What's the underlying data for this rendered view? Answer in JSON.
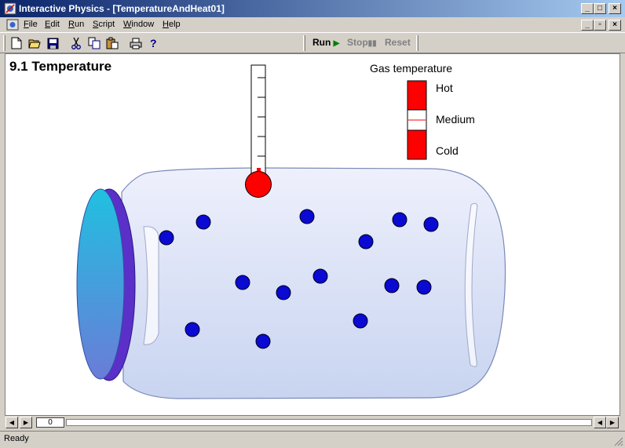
{
  "window": {
    "title": "Interactive Physics - [TemperatureAndHeat01]"
  },
  "menu": [
    {
      "label": "File",
      "key": "F"
    },
    {
      "label": "Edit",
      "key": "E"
    },
    {
      "label": "Run",
      "key": "R"
    },
    {
      "label": "Script",
      "key": "S"
    },
    {
      "label": "Window",
      "key": "W"
    },
    {
      "label": "Help",
      "key": "H"
    }
  ],
  "toolbar": {
    "icons": [
      "new-icon",
      "open-icon",
      "save-icon",
      "cut-icon",
      "copy-icon",
      "paste-icon",
      "print-icon",
      "help-icon"
    ],
    "run_label": "Run",
    "stop_label": "Stop",
    "reset_label": "Reset"
  },
  "simulation": {
    "title": "9.1 Temperature",
    "legend_title": "Gas temperature",
    "legend": {
      "hot": "Hot",
      "medium": "Medium",
      "cold": "Cold"
    },
    "colors": {
      "molecule": "#0a0ad2",
      "bulb": "#ff0000",
      "hot": "#ff0000",
      "cold": "#ff0000",
      "lid": "#30b8e0"
    }
  },
  "scroll": {
    "frame": "0"
  },
  "status": {
    "text": "Ready"
  }
}
